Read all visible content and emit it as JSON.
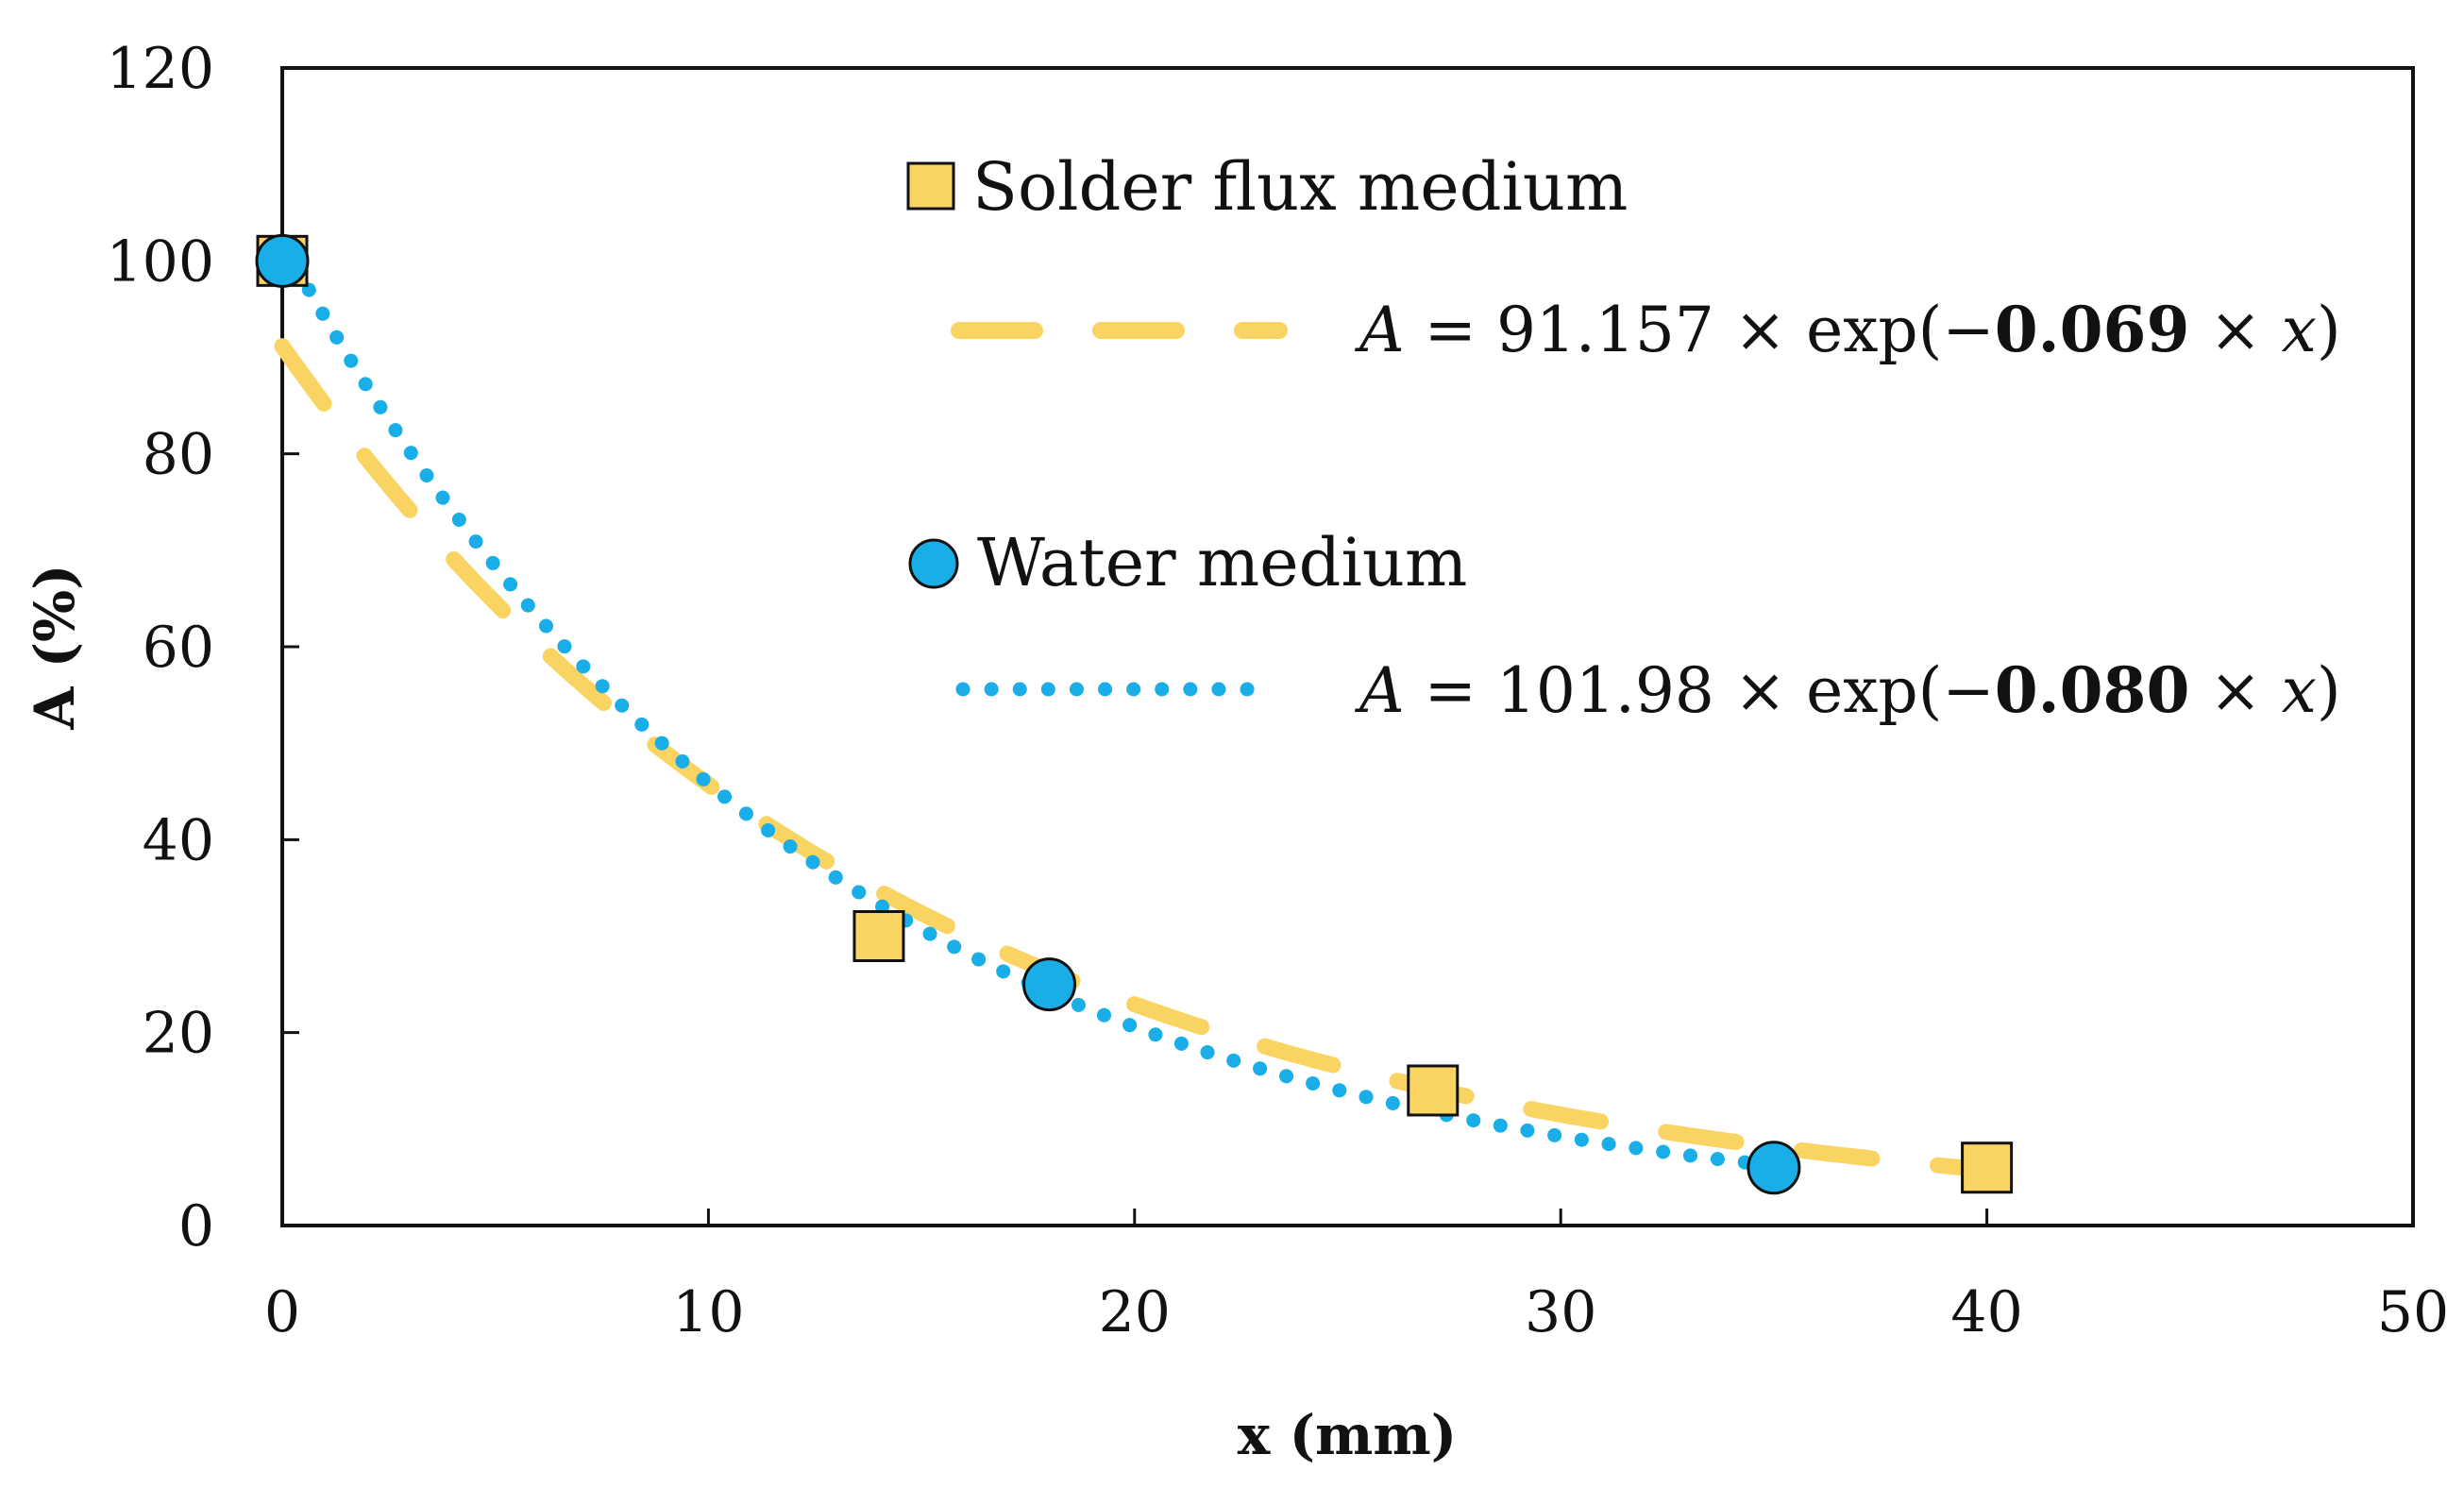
{
  "chart_data": {
    "type": "scatter",
    "xlabel": "x (mm)",
    "ylabel": "A (%)",
    "xlim": [
      0,
      50
    ],
    "ylim": [
      0,
      120
    ],
    "xticks": [
      0,
      10,
      20,
      30,
      40,
      50
    ],
    "yticks": [
      0,
      20,
      40,
      60,
      80,
      100,
      120
    ],
    "grid": false,
    "legend_position": "top-right",
    "colors": {
      "solder": "#FAD463",
      "water": "#1AAEE8",
      "marker_edge": "#111111"
    },
    "series": [
      {
        "name": "Solder flux medium",
        "marker": "square",
        "points": [
          [
            0,
            100
          ],
          [
            14,
            30
          ],
          [
            27,
            14
          ],
          [
            40,
            6
          ]
        ],
        "fit": {
          "style": "dashed",
          "a": 91.157,
          "b": 0.069,
          "x_range": [
            0,
            40
          ],
          "equation": {
            "lhs": "A",
            "eq": " = ",
            "coef": "91.157",
            "mid": " × exp(−",
            "rate": "0.069",
            "tail1": " × ",
            "var": "x",
            "tail2": ")"
          }
        }
      },
      {
        "name": "Water medium",
        "marker": "circle",
        "points": [
          [
            0,
            100
          ],
          [
            18,
            25
          ],
          [
            35,
            6
          ]
        ],
        "fit": {
          "style": "dotted",
          "a": 101.98,
          "b": 0.08,
          "x_range": [
            0,
            35
          ],
          "equation": {
            "lhs": "A",
            "eq": " = ",
            "coef": "101.98",
            "mid": " × exp(−",
            "rate": "0.080",
            "tail1": " × ",
            "var": "x",
            "tail2": ")"
          }
        }
      }
    ]
  }
}
